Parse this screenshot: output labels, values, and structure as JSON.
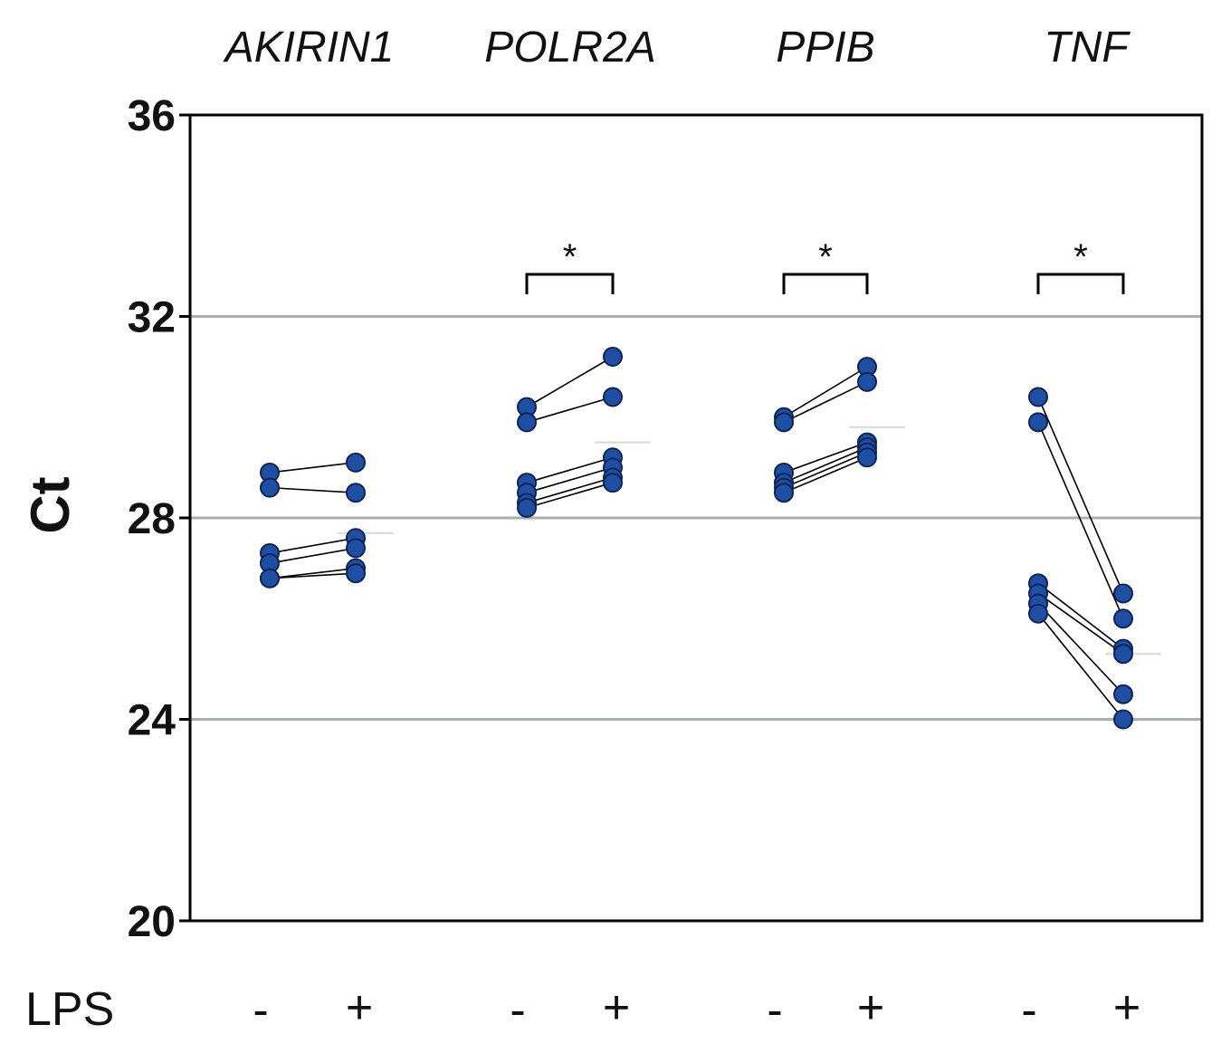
{
  "chart_data": {
    "type": "scatter",
    "subtype": "paired-dot-plot",
    "ylabel": "Ct",
    "ylim": [
      20,
      36
    ],
    "yticks": [
      20,
      24,
      28,
      32,
      36
    ],
    "gridlines_y": [
      24,
      28,
      32
    ],
    "condition_label": "LPS",
    "conditions": [
      "-",
      "+"
    ],
    "point_color": "#1f4fa3",
    "point_edge_color": "#0d2456",
    "groups": [
      {
        "gene": "AKIRIN1",
        "significance": "",
        "pairs": [
          [
            28.9,
            29.1
          ],
          [
            28.6,
            28.5
          ],
          [
            27.3,
            27.6
          ],
          [
            27.1,
            27.4
          ],
          [
            26.8,
            27.0
          ],
          [
            26.8,
            26.9
          ]
        ],
        "mean_plus": 27.7
      },
      {
        "gene": "POLR2A",
        "significance": "*",
        "pairs": [
          [
            30.2,
            31.2
          ],
          [
            29.9,
            30.4
          ],
          [
            28.7,
            29.2
          ],
          [
            28.5,
            29.0
          ],
          [
            28.3,
            28.8
          ],
          [
            28.2,
            28.7
          ]
        ],
        "mean_plus": 29.5
      },
      {
        "gene": "PPIB",
        "significance": "*",
        "pairs": [
          [
            30.0,
            31.0
          ],
          [
            29.9,
            30.7
          ],
          [
            28.9,
            29.5
          ],
          [
            28.7,
            29.4
          ],
          [
            28.6,
            29.3
          ],
          [
            28.5,
            29.2
          ]
        ],
        "mean_plus": 29.8
      },
      {
        "gene": "TNF",
        "significance": "*",
        "pairs": [
          [
            30.4,
            26.5
          ],
          [
            29.9,
            26.0
          ],
          [
            26.7,
            25.4
          ],
          [
            26.5,
            25.3
          ],
          [
            26.3,
            24.5
          ],
          [
            26.1,
            24.0
          ]
        ],
        "mean_plus": 25.3
      }
    ]
  }
}
